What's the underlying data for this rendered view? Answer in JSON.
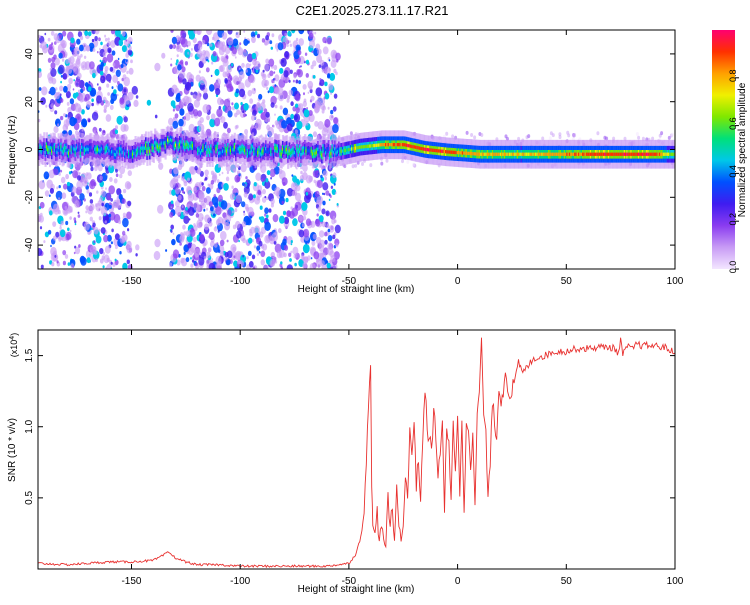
{
  "title": "C2E1.2025.273.11.17.R21",
  "colors": {
    "line": "#e8312f",
    "axis": "#000000",
    "background": "#ffffff"
  },
  "chart_data": [
    {
      "type": "heatmap",
      "xlabel": "Height of straight line (km)",
      "ylabel": "Frequency (Hz)",
      "xlim": [
        -193,
        100
      ],
      "ylim": [
        -50,
        50
      ],
      "xticks": [
        "-150",
        "-100",
        "-50",
        "0",
        "50",
        "100"
      ],
      "xtick_values": [
        -150,
        -100,
        -50,
        0,
        50,
        100
      ],
      "yticks": [
        "-40",
        "-20",
        "0",
        "20",
        "40"
      ],
      "ytick_values": [
        -40,
        -20,
        0,
        20,
        40
      ],
      "colorbar": {
        "label": "Normalized spectral amplitude",
        "range": [
          0,
          1
        ],
        "ticks": [
          "0.0",
          "0.2",
          "0.4",
          "0.6",
          "0.8"
        ],
        "tick_values": [
          0.0,
          0.2,
          0.4,
          0.6,
          0.8
        ],
        "colormap": [
          "#f3e6ff",
          "#c89bf5",
          "#8a3cf0",
          "#3f1cf0",
          "#0050ff",
          "#00c8e8",
          "#00e07a",
          "#7fe800",
          "#f0f000",
          "#ffa000",
          "#ff3000",
          "#ff0070"
        ]
      },
      "ridge": {
        "x": [
          -193,
          -150,
          -132,
          -120,
          -55,
          -45,
          -35,
          -25,
          -15,
          -5,
          10,
          30,
          60,
          90,
          100
        ],
        "frequency": [
          0,
          -1,
          3,
          0,
          -1,
          1,
          2,
          2,
          0,
          -1,
          -2,
          -2,
          -2,
          -2,
          -2
        ],
        "amplitude": [
          0.3,
          0.3,
          0.35,
          0.3,
          0.3,
          0.55,
          0.75,
          0.85,
          0.9,
          0.85,
          0.75,
          0.7,
          0.85,
          0.9,
          0.5
        ]
      }
    },
    {
      "type": "line",
      "xlabel": "Height of straight line (km)",
      "ylabel": "SNR (10 * v/v)",
      "y_exponent_label": "(x10",
      "y_exponent_power": "4",
      "y_exponent_close": ")",
      "xlim": [
        -193,
        100
      ],
      "ylim": [
        0,
        1.68
      ],
      "xticks": [
        "-150",
        "-100",
        "-50",
        "0",
        "50",
        "100"
      ],
      "xtick_values": [
        -150,
        -100,
        -50,
        0,
        50,
        100
      ],
      "yticks": [
        "0.5",
        "1.0",
        "1.5"
      ],
      "ytick_values": [
        0.5,
        1.0,
        1.5
      ],
      "series": [
        {
          "x": [
            -193,
            -180,
            -170,
            -160,
            -150,
            -140,
            -136,
            -133,
            -130,
            -125,
            -120,
            -110,
            -100,
            -90,
            -80,
            -70,
            -60,
            -55,
            -50,
            -47,
            -45,
            -43,
            -42,
            -41,
            -40,
            -39.5,
            -39,
            -38,
            -37,
            -36,
            -35,
            -34,
            -33,
            -32,
            -31,
            -30,
            -29,
            -28,
            -27,
            -26,
            -25,
            -24,
            -23,
            -22,
            -21,
            -20,
            -19,
            -18,
            -17,
            -16,
            -15,
            -14,
            -13,
            -12,
            -11,
            -10,
            -9,
            -8,
            -7,
            -6,
            -5,
            -4,
            -3,
            -2,
            -1,
            0,
            1,
            2,
            3,
            4,
            5,
            6,
            7,
            8,
            9,
            10,
            11,
            12,
            13,
            14,
            15,
            16,
            17,
            18,
            19,
            20,
            22,
            24,
            26,
            28,
            30,
            35,
            40,
            45,
            50,
            55,
            60,
            65,
            70,
            72,
            74,
            75,
            76,
            78,
            80,
            82,
            85,
            90,
            95,
            100
          ],
          "y": [
            0.04,
            0.03,
            0.04,
            0.05,
            0.05,
            0.06,
            0.09,
            0.12,
            0.08,
            0.05,
            0.03,
            0.03,
            0.02,
            0.02,
            0.02,
            0.02,
            0.02,
            0.03,
            0.04,
            0.1,
            0.2,
            0.35,
            0.75,
            1.2,
            1.45,
            0.6,
            0.3,
            0.25,
            0.4,
            0.2,
            0.35,
            0.2,
            0.15,
            0.5,
            0.3,
            0.4,
            0.2,
            0.55,
            0.35,
            0.2,
            0.3,
            0.7,
            0.45,
            1.0,
            0.8,
            1.05,
            0.6,
            0.75,
            0.5,
            0.95,
            1.25,
            1.0,
            0.9,
            0.85,
            1.1,
            0.95,
            0.6,
            0.85,
            1.05,
            0.4,
            1.0,
            0.85,
            0.45,
            1.05,
            0.7,
            1.1,
            0.55,
            1.0,
            0.4,
            1.05,
            1.0,
            0.75,
            0.95,
            0.4,
            1.1,
            1.25,
            1.62,
            1.05,
            1.0,
            0.45,
            0.75,
            1.2,
            1.0,
            0.95,
            1.3,
            1.15,
            1.38,
            1.22,
            1.3,
            1.45,
            1.38,
            1.48,
            1.5,
            1.53,
            1.53,
            1.55,
            1.55,
            1.56,
            1.56,
            1.55,
            1.52,
            1.61,
            1.5,
            1.57,
            1.54,
            1.58,
            1.57,
            1.57,
            1.56,
            1.52
          ]
        }
      ]
    }
  ]
}
